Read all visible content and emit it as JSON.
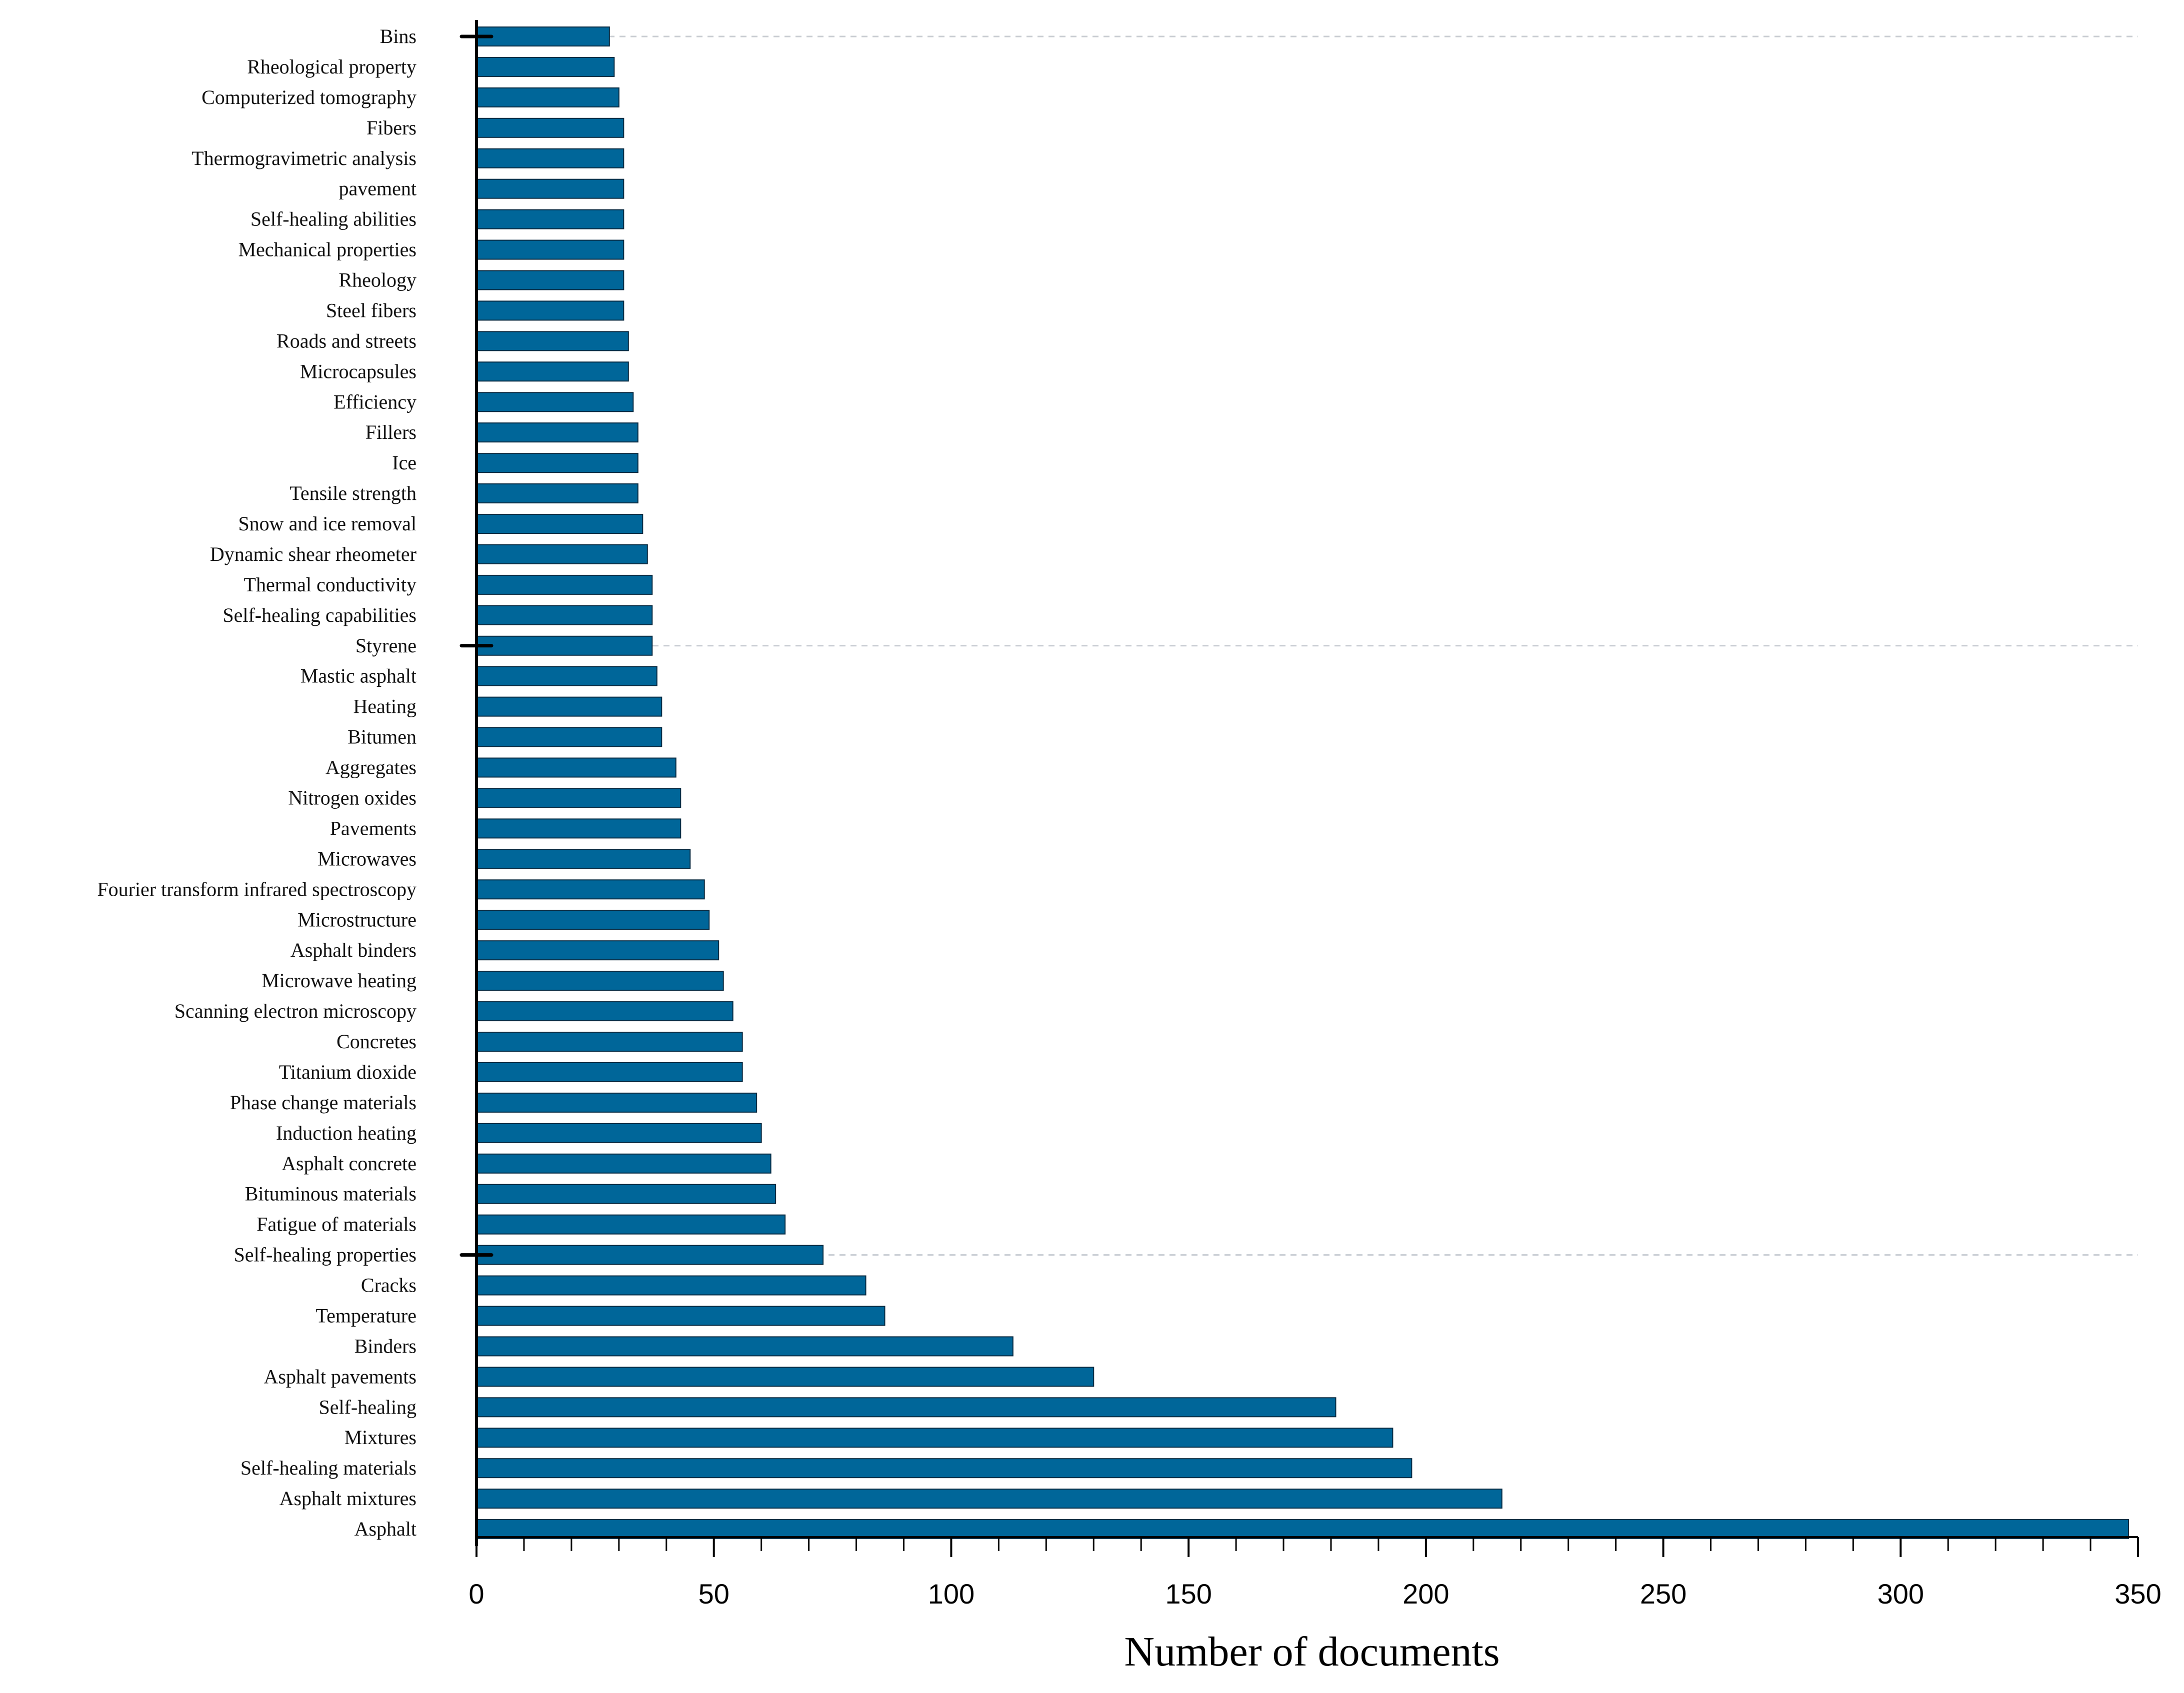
{
  "chart_data": {
    "type": "bar",
    "orientation": "horizontal",
    "title": "",
    "xlabel": "Number of documents",
    "ylabel": "",
    "xlim": [
      0,
      350
    ],
    "major_ticks": [
      0,
      50,
      100,
      150,
      200,
      250,
      300,
      350
    ],
    "minor_tick_step": 10,
    "grid": "dashed reference lines at Bins, Styrene, Self-healing properties",
    "highlight_categories": [
      "Bins",
      "Styrene",
      "Self-healing properties"
    ],
    "bar_color": "#006699",
    "bar_edge_color": "#0a2a40",
    "categories": [
      "Bins",
      "Rheological property",
      "Computerized tomography",
      "Fibers",
      "Thermogravimetric analysis",
      "pavement",
      "Self-healing abilities",
      "Mechanical properties",
      "Rheology",
      "Steel fibers",
      "Roads and streets",
      "Microcapsules",
      "Efficiency",
      "Fillers",
      "Ice",
      "Tensile strength",
      "Snow and ice removal",
      "Dynamic shear rheometer",
      "Thermal conductivity",
      "Self-healing capabilities",
      "Styrene",
      "Mastic asphalt",
      "Heating",
      "Bitumen",
      "Aggregates",
      "Nitrogen oxides",
      "Pavements",
      "Microwaves",
      "Fourier transform infrared spectroscopy",
      "Microstructure",
      "Asphalt binders",
      "Microwave heating",
      "Scanning electron microscopy",
      "Concretes",
      "Titanium dioxide",
      "Phase change materials",
      "Induction heating",
      "Asphalt concrete",
      "Bituminous materials",
      "Fatigue of materials",
      "Self-healing properties",
      "Cracks",
      "Temperature",
      "Binders",
      "Asphalt pavements",
      "Self-healing",
      "Mixtures",
      "Self-healing materials",
      "Asphalt mixtures",
      "Asphalt"
    ],
    "values": [
      28,
      29,
      30,
      31,
      31,
      31,
      31,
      31,
      31,
      31,
      32,
      32,
      33,
      34,
      34,
      34,
      35,
      36,
      37,
      37,
      37,
      38,
      39,
      39,
      42,
      43,
      43,
      45,
      48,
      49,
      51,
      52,
      54,
      56,
      56,
      59,
      60,
      62,
      63,
      65,
      73,
      82,
      86,
      113,
      130,
      181,
      193,
      197,
      216,
      348
    ]
  }
}
